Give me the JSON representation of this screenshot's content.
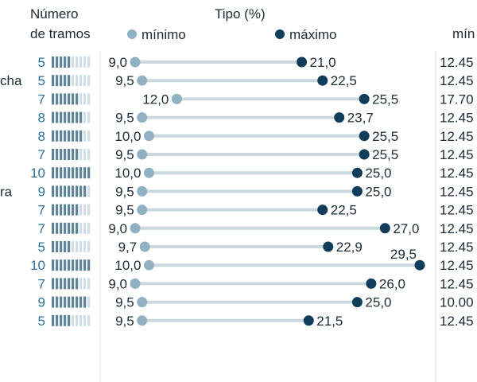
{
  "header": {
    "tramos_label_line1": "Número",
    "tramos_label_line2": "de tramos",
    "tipo_label": "Tipo (%)",
    "legend_min": "mínimo",
    "legend_max": "máximo",
    "right_col_label": "mín"
  },
  "colors": {
    "text": "#1c2a36",
    "count": "#2a6f96",
    "min_dot": "#8fb1c2",
    "max_dot": "#103e5a",
    "line": "#c9d8df",
    "bar_filled": "#5f8499",
    "bar_empty": "#cfdee6",
    "divider": "#d8dde0"
  },
  "chart_data": {
    "type": "dumbbell",
    "x_range": [
      9.0,
      29.5
    ],
    "rows": [
      {
        "label": "",
        "tramos": "5",
        "min": "9,0",
        "max": "21,0",
        "min_value": 9.0,
        "max_value": 21.0,
        "right": "12.45"
      },
      {
        "label": "cha",
        "tramos": "5",
        "min": "9,5",
        "max": "22,5",
        "min_value": 9.5,
        "max_value": 22.5,
        "right": "12.45"
      },
      {
        "label": "",
        "tramos": "7",
        "min": "12,0",
        "max": "25,5",
        "min_value": 12.0,
        "max_value": 25.5,
        "right": "17.70"
      },
      {
        "label": "",
        "tramos": "8",
        "min": "9,5",
        "max": "23,7",
        "min_value": 9.5,
        "max_value": 23.7,
        "right": "12.45"
      },
      {
        "label": "",
        "tramos": "8",
        "min": "10,0",
        "max": "25,5",
        "min_value": 10.0,
        "max_value": 25.5,
        "right": "12.45"
      },
      {
        "label": "",
        "tramos": "7",
        "min": "9,5",
        "max": "25,5",
        "min_value": 9.5,
        "max_value": 25.5,
        "right": "12.45"
      },
      {
        "label": "",
        "tramos": "10",
        "min": "10,0",
        "max": "25,0",
        "min_value": 10.0,
        "max_value": 25.0,
        "right": "12.45"
      },
      {
        "label": "ra",
        "tramos": "9",
        "min": "9,5",
        "max": "25,0",
        "min_value": 9.5,
        "max_value": 25.0,
        "right": "12.45"
      },
      {
        "label": "",
        "tramos": "7",
        "min": "9,5",
        "max": "22,5",
        "min_value": 9.5,
        "max_value": 22.5,
        "right": "12.45"
      },
      {
        "label": "",
        "tramos": "7",
        "min": "9,0",
        "max": "27,0",
        "min_value": 9.0,
        "max_value": 27.0,
        "right": "12.45"
      },
      {
        "label": "",
        "tramos": "5",
        "min": "9,7",
        "max": "22,9",
        "min_value": 9.7,
        "max_value": 22.9,
        "right": "12.45"
      },
      {
        "label": "",
        "tramos": "10",
        "min": "10,0",
        "max": "29,5",
        "min_value": 10.0,
        "max_value": 29.5,
        "right": "12.45"
      },
      {
        "label": "",
        "tramos": "7",
        "min": "9,0",
        "max": "26,0",
        "min_value": 9.0,
        "max_value": 26.0,
        "right": "12.45"
      },
      {
        "label": "",
        "tramos": "9",
        "min": "9,5",
        "max": "25,0",
        "min_value": 9.5,
        "max_value": 25.0,
        "right": "10.00"
      },
      {
        "label": "",
        "tramos": "5",
        "min": "9,5",
        "max": "21,5",
        "min_value": 9.5,
        "max_value": 21.5,
        "right": "12.45"
      }
    ]
  }
}
